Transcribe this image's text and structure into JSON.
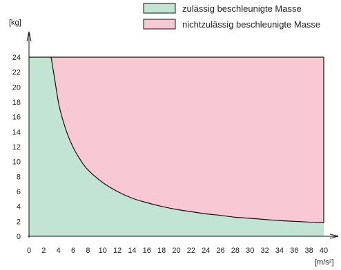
{
  "chart_data": {
    "type": "area",
    "title": "",
    "xlabel": "[m/s²]",
    "ylabel": "[kg]",
    "xlim": [
      0,
      40
    ],
    "ylim": [
      0,
      24
    ],
    "x_ticks": [
      0,
      2,
      4,
      6,
      8,
      10,
      12,
      14,
      16,
      18,
      20,
      22,
      24,
      26,
      28,
      30,
      32,
      34,
      36,
      38,
      40
    ],
    "y_ticks": [
      0,
      2,
      4,
      6,
      8,
      10,
      12,
      14,
      16,
      18,
      20,
      22,
      24
    ],
    "grid": false,
    "legend_position": "top-right",
    "series": [
      {
        "name": "zulässig beschleunigte Masse",
        "color": "#c1e4d4",
        "x": [
          0,
          3,
          4,
          5,
          6,
          7,
          8,
          10,
          12,
          14,
          16,
          18,
          20,
          22,
          24,
          26,
          28,
          30,
          32,
          34,
          36,
          38,
          40
        ],
        "values": [
          24,
          24,
          17.9,
          14.3,
          11.9,
          10.2,
          8.9,
          7.2,
          6.0,
          5.1,
          4.5,
          4.0,
          3.6,
          3.3,
          3.0,
          2.8,
          2.55,
          2.4,
          2.25,
          2.1,
          2.0,
          1.9,
          1.8
        ]
      },
      {
        "name": "nichtzulässig beschleunigte Masse",
        "color": "#f8c9d4",
        "x": [
          0,
          40
        ],
        "values": [
          24,
          24
        ]
      }
    ]
  }
}
